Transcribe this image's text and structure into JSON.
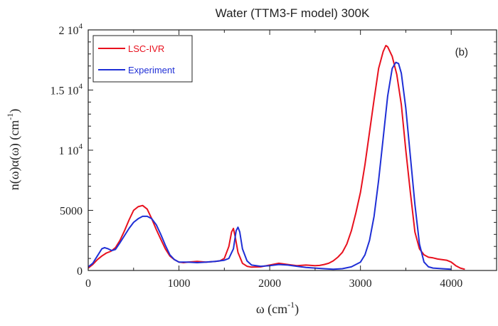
{
  "chart_data": {
    "type": "line",
    "title": "Water (TTM3-F model) 300K",
    "panel_label": "(b)",
    "xlabel": {
      "main": "ω (cm",
      "sup": "-1",
      "close": ")"
    },
    "ylabel": {
      "main": "n(ω)α(ω)  (cm",
      "sup": "-1",
      "close": ")"
    },
    "xlim": [
      0,
      4500
    ],
    "ylim": [
      0,
      20000
    ],
    "x_ticks": [
      {
        "value": 0,
        "label": "0"
      },
      {
        "value": 1000,
        "label": "1000"
      },
      {
        "value": 2000,
        "label": "2000"
      },
      {
        "value": 3000,
        "label": "3000"
      },
      {
        "value": 4000,
        "label": "4000"
      }
    ],
    "y_ticks": [
      {
        "value": 0,
        "label": "0",
        "sup": ""
      },
      {
        "value": 5000,
        "label": "5000",
        "sup": ""
      },
      {
        "value": 10000,
        "label": "1 10",
        "sup": "4"
      },
      {
        "value": 15000,
        "label": "1.5 10",
        "sup": "4"
      },
      {
        "value": 20000,
        "label": "2 10",
        "sup": "4"
      }
    ],
    "grid": false,
    "legend_position": "top-left",
    "series": [
      {
        "name": "LSC-IVR",
        "color": "#e8111e",
        "points": [
          [
            0,
            200
          ],
          [
            50,
            500
          ],
          [
            100,
            900
          ],
          [
            150,
            1200
          ],
          [
            200,
            1450
          ],
          [
            250,
            1600
          ],
          [
            300,
            1900
          ],
          [
            350,
            2500
          ],
          [
            400,
            3300
          ],
          [
            450,
            4200
          ],
          [
            500,
            5000
          ],
          [
            550,
            5300
          ],
          [
            600,
            5400
          ],
          [
            650,
            5100
          ],
          [
            700,
            4300
          ],
          [
            750,
            3400
          ],
          [
            800,
            2600
          ],
          [
            850,
            1800
          ],
          [
            900,
            1200
          ],
          [
            950,
            900
          ],
          [
            1000,
            700
          ],
          [
            1050,
            650
          ],
          [
            1100,
            700
          ],
          [
            1200,
            750
          ],
          [
            1300,
            700
          ],
          [
            1400,
            750
          ],
          [
            1450,
            800
          ],
          [
            1500,
            1000
          ],
          [
            1550,
            2000
          ],
          [
            1580,
            3200
          ],
          [
            1600,
            3500
          ],
          [
            1620,
            2800
          ],
          [
            1650,
            1500
          ],
          [
            1700,
            600
          ],
          [
            1750,
            350
          ],
          [
            1800,
            280
          ],
          [
            1900,
            300
          ],
          [
            2000,
            450
          ],
          [
            2100,
            600
          ],
          [
            2200,
            500
          ],
          [
            2300,
            400
          ],
          [
            2400,
            450
          ],
          [
            2500,
            400
          ],
          [
            2550,
            420
          ],
          [
            2600,
            500
          ],
          [
            2650,
            600
          ],
          [
            2700,
            800
          ],
          [
            2750,
            1100
          ],
          [
            2800,
            1500
          ],
          [
            2850,
            2200
          ],
          [
            2900,
            3300
          ],
          [
            2950,
            4800
          ],
          [
            3000,
            6500
          ],
          [
            3050,
            8800
          ],
          [
            3100,
            11500
          ],
          [
            3150,
            14200
          ],
          [
            3200,
            16800
          ],
          [
            3250,
            18200
          ],
          [
            3280,
            18700
          ],
          [
            3300,
            18600
          ],
          [
            3350,
            17800
          ],
          [
            3400,
            16300
          ],
          [
            3450,
            13800
          ],
          [
            3500,
            10000
          ],
          [
            3550,
            6500
          ],
          [
            3600,
            3200
          ],
          [
            3650,
            1800
          ],
          [
            3700,
            1300
          ],
          [
            3750,
            1100
          ],
          [
            3800,
            1050
          ],
          [
            3850,
            950
          ],
          [
            3900,
            900
          ],
          [
            3950,
            850
          ],
          [
            4000,
            700
          ],
          [
            4050,
            400
          ],
          [
            4100,
            200
          ],
          [
            4150,
            100
          ]
        ]
      },
      {
        "name": "Experiment",
        "color": "#1f2fd6",
        "points": [
          [
            0,
            300
          ],
          [
            50,
            600
          ],
          [
            100,
            1200
          ],
          [
            150,
            1800
          ],
          [
            180,
            1900
          ],
          [
            220,
            1800
          ],
          [
            260,
            1650
          ],
          [
            300,
            1750
          ],
          [
            350,
            2300
          ],
          [
            400,
            2900
          ],
          [
            450,
            3500
          ],
          [
            500,
            4000
          ],
          [
            550,
            4300
          ],
          [
            600,
            4500
          ],
          [
            650,
            4500
          ],
          [
            700,
            4300
          ],
          [
            750,
            3800
          ],
          [
            800,
            3000
          ],
          [
            850,
            2100
          ],
          [
            900,
            1300
          ],
          [
            950,
            900
          ],
          [
            1000,
            700
          ],
          [
            1050,
            700
          ],
          [
            1100,
            700
          ],
          [
            1200,
            650
          ],
          [
            1300,
            700
          ],
          [
            1400,
            750
          ],
          [
            1500,
            850
          ],
          [
            1550,
            1000
          ],
          [
            1600,
            1800
          ],
          [
            1630,
            3300
          ],
          [
            1650,
            3600
          ],
          [
            1670,
            3200
          ],
          [
            1700,
            1800
          ],
          [
            1750,
            800
          ],
          [
            1800,
            450
          ],
          [
            1900,
            350
          ],
          [
            2000,
            400
          ],
          [
            2100,
            500
          ],
          [
            2200,
            450
          ],
          [
            2300,
            350
          ],
          [
            2400,
            250
          ],
          [
            2500,
            200
          ],
          [
            2600,
            150
          ],
          [
            2700,
            100
          ],
          [
            2800,
            150
          ],
          [
            2900,
            300
          ],
          [
            3000,
            700
          ],
          [
            3050,
            1300
          ],
          [
            3100,
            2500
          ],
          [
            3150,
            4500
          ],
          [
            3200,
            7500
          ],
          [
            3250,
            11000
          ],
          [
            3300,
            14500
          ],
          [
            3350,
            16800
          ],
          [
            3390,
            17300
          ],
          [
            3420,
            17200
          ],
          [
            3450,
            16400
          ],
          [
            3500,
            13500
          ],
          [
            3550,
            9500
          ],
          [
            3600,
            5500
          ],
          [
            3650,
            2200
          ],
          [
            3700,
            700
          ],
          [
            3750,
            300
          ],
          [
            3800,
            200
          ],
          [
            3900,
            150
          ],
          [
            4000,
            100
          ]
        ]
      }
    ]
  }
}
